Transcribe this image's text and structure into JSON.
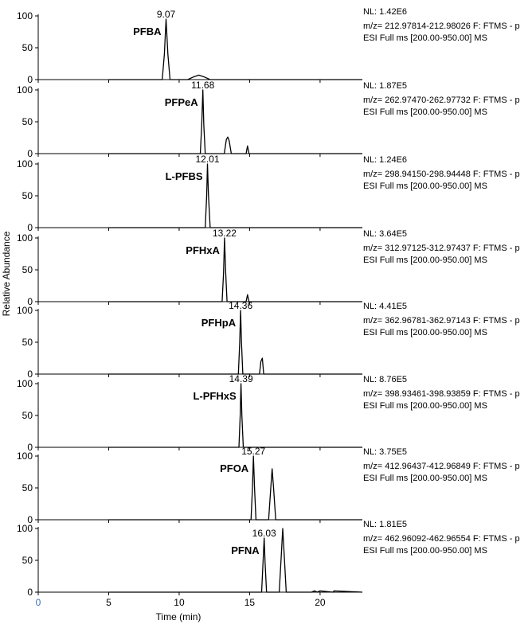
{
  "chart_data": {
    "type": "line",
    "xlabel": "Time (min)",
    "ylabel": "Relative Abundance",
    "xlim": [
      0,
      23
    ],
    "x_ticks": [
      "0",
      "5",
      "10",
      "15",
      "20"
    ],
    "ylim": [
      0,
      100
    ],
    "y_ticks": [
      "0",
      "50",
      "100"
    ],
    "series": [
      {
        "name": "PFBA",
        "peak_label": "9.07",
        "nl": "NL: 1.42E6",
        "mz": "m/z= 212.97814-212.98026 F: FTMS - p",
        "scan": "ESI Full ms [200.00-950.00]  MS",
        "x": [
          5,
          8.8,
          8.95,
          9.07,
          9.2,
          9.35,
          10.6,
          11.0,
          11.4,
          11.8,
          12.2,
          23
        ],
        "y": [
          0,
          0,
          40,
          95,
          40,
          0,
          0,
          4,
          7,
          4,
          0,
          0
        ]
      },
      {
        "name": "PFPeA",
        "peak_label": "11.68",
        "nl": "NL: 1.87E5",
        "mz": "m/z= 262.97470-262.97732 F: FTMS - p",
        "scan": "ESI Full ms [200.00-950.00]  MS",
        "x": [
          5,
          11.5,
          11.6,
          11.68,
          11.75,
          11.85,
          13.2,
          13.35,
          13.45,
          13.55,
          13.7,
          14.75,
          14.85,
          14.95,
          23
        ],
        "y": [
          0,
          0,
          45,
          100,
          45,
          0,
          0,
          22,
          26,
          20,
          0,
          0,
          12,
          0,
          0
        ]
      },
      {
        "name": "L-PFBS",
        "peak_label": "12.01",
        "nl": "NL: 1.24E6",
        "mz": "m/z= 298.94150-298.94448 F: FTMS - p",
        "scan": "ESI Full ms [200.00-950.00]  MS",
        "x": [
          5,
          11.85,
          11.95,
          12.01,
          12.08,
          12.2,
          23
        ],
        "y": [
          0,
          0,
          50,
          100,
          50,
          0,
          0
        ]
      },
      {
        "name": "PFHxA",
        "peak_label": "13.22",
        "nl": "NL: 3.64E5",
        "mz": "m/z= 312.97125-312.97437 F: FTMS - p",
        "scan": "ESI Full ms [200.00-950.00]  MS",
        "x": [
          5,
          13.05,
          13.15,
          13.22,
          13.3,
          13.4,
          14.75,
          14.85,
          14.95,
          23
        ],
        "y": [
          0,
          0,
          45,
          100,
          45,
          0,
          0,
          11,
          0,
          0
        ]
      },
      {
        "name": "PFHpA",
        "peak_label": "14.36",
        "nl": "NL: 4.41E5",
        "mz": "m/z= 362.96781-362.97143 F: FTMS - p",
        "scan": "ESI Full ms [200.00-950.00]  MS",
        "x": [
          5,
          14.2,
          14.3,
          14.36,
          14.42,
          14.52,
          15.7,
          15.8,
          15.9,
          16.0,
          23
        ],
        "y": [
          0,
          0,
          50,
          100,
          50,
          0,
          0,
          20,
          25,
          0,
          0
        ]
      },
      {
        "name": "L-PFHxS",
        "peak_label": "14.39",
        "nl": "NL: 8.76E5",
        "mz": "m/z= 398.93461-398.93859 F: FTMS - p",
        "scan": "ESI Full ms [200.00-950.00]  MS",
        "x": [
          5,
          14.24,
          14.33,
          14.39,
          14.45,
          14.55,
          23
        ],
        "y": [
          0,
          0,
          50,
          100,
          50,
          0,
          0
        ]
      },
      {
        "name": "PFOA",
        "peak_label": "15.27",
        "nl": "NL: 3.75E5",
        "mz": "m/z= 412.96437-412.96849 F: FTMS - p",
        "scan": "ESI Full ms [200.00-950.00]  MS",
        "x": [
          5,
          15.1,
          15.2,
          15.27,
          15.35,
          15.45,
          16.35,
          16.5,
          16.6,
          16.7,
          16.85,
          23
        ],
        "y": [
          0,
          0,
          50,
          100,
          50,
          0,
          0,
          50,
          80,
          50,
          0,
          0
        ]
      },
      {
        "name": "PFNA",
        "peak_label": "16.03",
        "nl": "NL: 1.81E5",
        "mz": "m/z= 462.96092-462.96554 F: FTMS - p",
        "scan": "ESI Full ms [200.00-950.00]  MS",
        "x": [
          5,
          15.85,
          15.95,
          16.03,
          16.1,
          16.2,
          17.1,
          17.25,
          17.35,
          17.45,
          17.6,
          19.4,
          19.6,
          19.8,
          20.0,
          20.9,
          21.0,
          23
        ],
        "y": [
          0,
          0,
          45,
          85,
          45,
          0,
          0,
          60,
          100,
          60,
          0,
          0,
          2,
          0,
          2,
          0,
          2,
          0
        ]
      }
    ]
  }
}
